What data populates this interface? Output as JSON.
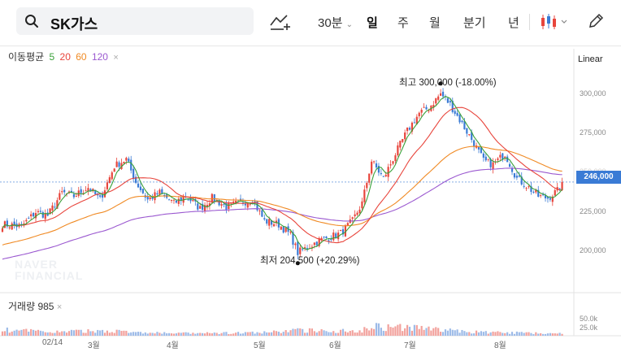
{
  "toolbar": {
    "search_query": "SK가스",
    "interval_label": "30분",
    "periods": [
      "일",
      "주",
      "월",
      "분기",
      "년"
    ],
    "selected_period": "일"
  },
  "indicators": {
    "ma_title": "이동평균",
    "ma_periods": [
      "5",
      "20",
      "60",
      "120"
    ],
    "ma_colors": [
      "#3aa13a",
      "#e8453c",
      "#f08a24",
      "#9b59d0"
    ],
    "scale_label": "Linear",
    "volume_label": "거래량 985"
  },
  "annotations": {
    "high": "최고 300,000 (-18.00%)",
    "low": "최저 204,500 (+20.29%)"
  },
  "chart_data": {
    "type": "candlestick",
    "title": "",
    "current_price_label": "246,000",
    "y_ticks": [
      "300,000",
      "275,000",
      "250,000",
      "225,000",
      "200,000"
    ],
    "ylim": [
      187000,
      316000
    ],
    "x_ticks": [
      "02/14",
      "3월",
      "4월",
      "5월",
      "6월",
      "7월",
      "8월"
    ],
    "volume_ticks": [
      "50.0k",
      "25.0k"
    ],
    "up_color": "#e8453c",
    "down_color": "#3a7bd5",
    "close_anchors": [
      [
        0,
        222000
      ],
      [
        8,
        221000
      ],
      [
        14,
        229000
      ],
      [
        19,
        227000
      ],
      [
        25,
        240000
      ],
      [
        30,
        238000
      ],
      [
        36,
        243000
      ],
      [
        41,
        236000
      ],
      [
        47,
        255000
      ],
      [
        52,
        259000
      ],
      [
        56,
        246000
      ],
      [
        61,
        236000
      ],
      [
        66,
        240000
      ],
      [
        72,
        234000
      ],
      [
        77,
        238000
      ],
      [
        83,
        231000
      ],
      [
        88,
        237000
      ],
      [
        94,
        232000
      ],
      [
        99,
        234000
      ],
      [
        105,
        236000
      ],
      [
        110,
        224000
      ],
      [
        116,
        222000
      ],
      [
        121,
        216000
      ],
      [
        124,
        206000
      ],
      [
        128,
        209000
      ],
      [
        133,
        213000
      ],
      [
        138,
        215000
      ],
      [
        142,
        217000
      ],
      [
        147,
        224000
      ],
      [
        151,
        234000
      ],
      [
        155,
        258000
      ],
      [
        160,
        248000
      ],
      [
        165,
        262000
      ],
      [
        170,
        275000
      ],
      [
        175,
        285000
      ],
      [
        179,
        288000
      ],
      [
        184,
        296000
      ],
      [
        188,
        290000
      ],
      [
        193,
        279000
      ],
      [
        198,
        268000
      ],
      [
        202,
        258000
      ],
      [
        206,
        256000
      ],
      [
        211,
        262000
      ],
      [
        216,
        248000
      ],
      [
        220,
        244000
      ],
      [
        225,
        238000
      ],
      [
        229,
        237000
      ],
      [
        233,
        241000
      ],
      [
        235,
        246000
      ]
    ],
    "volume_anchors": [
      [
        0,
        15
      ],
      [
        20,
        10
      ],
      [
        47,
        13
      ],
      [
        55,
        8
      ],
      [
        80,
        6
      ],
      [
        110,
        8
      ],
      [
        123,
        14
      ],
      [
        150,
        12
      ],
      [
        155,
        28
      ],
      [
        160,
        22
      ],
      [
        175,
        20
      ],
      [
        195,
        10
      ],
      [
        210,
        8
      ],
      [
        225,
        7
      ],
      [
        235,
        6
      ]
    ]
  }
}
